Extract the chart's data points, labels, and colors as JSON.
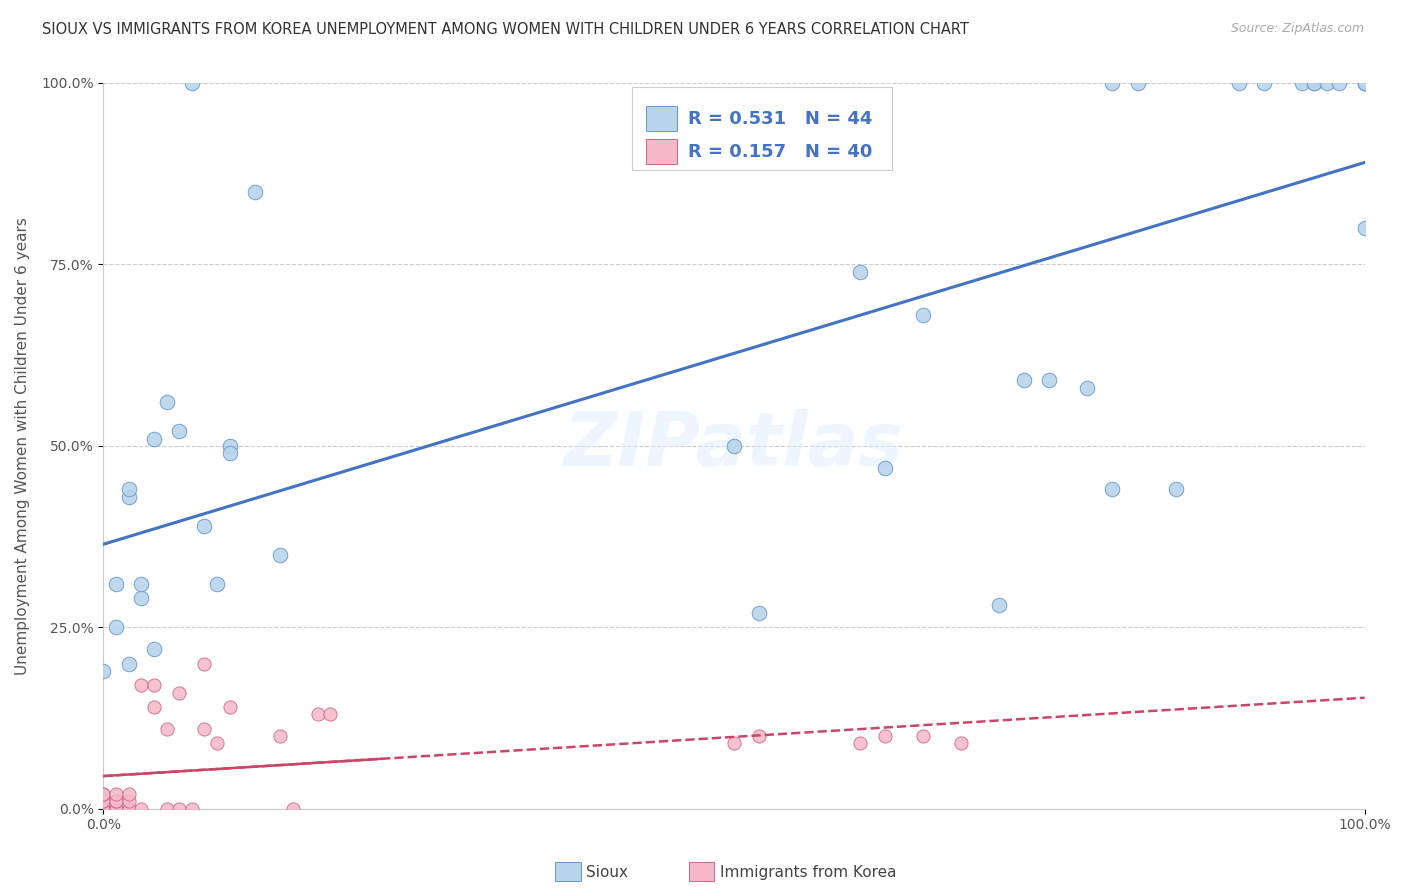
{
  "title": "SIOUX VS IMMIGRANTS FROM KOREA UNEMPLOYMENT AMONG WOMEN WITH CHILDREN UNDER 6 YEARS CORRELATION CHART",
  "source": "Source: ZipAtlas.com",
  "ylabel": "Unemployment Among Women with Children Under 6 years",
  "background_color": "#ffffff",
  "watermark": "ZIPatlas",
  "sioux_color": "#b8d4ec",
  "korea_color": "#f5b8c8",
  "sioux_edge_color": "#6699cc",
  "korea_edge_color": "#cc6688",
  "sioux_line_color": "#4472c4",
  "korea_line_color": "#cc4466",
  "legend_color": "#4472c4",
  "sioux_R": 0.531,
  "sioux_N": 44,
  "korea_R": 0.157,
  "korea_N": 40,
  "sioux_scatter_x": [
    0.0,
    0.01,
    0.01,
    0.02,
    0.02,
    0.02,
    0.03,
    0.03,
    0.04,
    0.04,
    0.05,
    0.06,
    0.07,
    0.08,
    0.09,
    0.1,
    0.1,
    0.12,
    0.14,
    0.5,
    0.52,
    0.6,
    0.62,
    0.65,
    0.71,
    0.73,
    0.75,
    0.78,
    0.8,
    0.8,
    0.82,
    0.85,
    0.9,
    0.92,
    0.95,
    0.96,
    0.96,
    0.97,
    0.98,
    1.0,
    1.0,
    1.0,
    1.0,
    1.0
  ],
  "sioux_scatter_y": [
    0.19,
    0.25,
    0.31,
    0.43,
    0.44,
    0.2,
    0.29,
    0.31,
    0.51,
    0.22,
    0.56,
    0.52,
    1.0,
    0.39,
    0.31,
    0.5,
    0.49,
    0.85,
    0.35,
    0.5,
    0.27,
    0.74,
    0.47,
    0.68,
    0.28,
    0.59,
    0.59,
    0.58,
    0.44,
    1.0,
    1.0,
    0.44,
    1.0,
    1.0,
    1.0,
    1.0,
    1.0,
    1.0,
    1.0,
    0.8,
    1.0,
    1.0,
    1.0,
    1.0
  ],
  "korea_scatter_x": [
    0.0,
    0.0,
    0.0,
    0.0,
    0.0,
    0.0,
    0.0,
    0.0,
    0.01,
    0.01,
    0.01,
    0.01,
    0.01,
    0.02,
    0.02,
    0.02,
    0.02,
    0.03,
    0.03,
    0.04,
    0.04,
    0.05,
    0.05,
    0.06,
    0.06,
    0.07,
    0.08,
    0.08,
    0.09,
    0.1,
    0.14,
    0.15,
    0.17,
    0.18,
    0.5,
    0.52,
    0.6,
    0.62,
    0.65,
    0.68
  ],
  "korea_scatter_y": [
    0.0,
    0.0,
    0.0,
    0.0,
    0.01,
    0.01,
    0.02,
    0.02,
    0.0,
    0.0,
    0.01,
    0.01,
    0.02,
    0.0,
    0.0,
    0.01,
    0.02,
    0.0,
    0.17,
    0.14,
    0.17,
    0.0,
    0.11,
    0.0,
    0.16,
    0.0,
    0.11,
    0.2,
    0.09,
    0.14,
    0.1,
    0.0,
    0.13,
    0.13,
    0.09,
    0.1,
    0.09,
    0.1,
    0.1,
    0.09
  ],
  "ylim": [
    0,
    1.0
  ],
  "xlim": [
    0,
    1.0
  ],
  "yticks": [
    0.0,
    0.25,
    0.5,
    0.75,
    1.0
  ],
  "ytick_labels": [
    "0.0%",
    "25.0%",
    "50.0%",
    "75.0%",
    "100.0%"
  ],
  "xtick_labels": [
    "0.0%",
    "100.0%"
  ],
  "title_fontsize": 10.5,
  "source_fontsize": 9,
  "ylabel_fontsize": 11,
  "tick_fontsize": 10,
  "legend_fontsize": 13
}
